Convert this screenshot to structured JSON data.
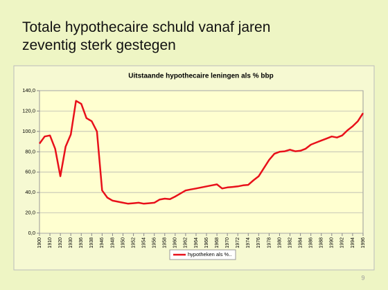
{
  "slide_title": "Totale hypothecaire schuld vanaf jaren zeventig sterk gestegen",
  "page_number": "9",
  "chart_data": {
    "type": "line",
    "title": "Uitstaande hypothecaire leningen als % bbp",
    "categories": [
      "1900",
      null,
      "1910",
      null,
      "1920",
      null,
      "1930",
      null,
      "1936",
      null,
      "1938",
      null,
      "1946",
      null,
      "1948",
      null,
      "1950",
      null,
      "1952",
      null,
      "1954",
      null,
      "1956",
      null,
      "1958",
      null,
      "1960",
      null,
      "1962",
      null,
      "1964",
      null,
      "1966",
      null,
      "1968",
      null,
      "1970",
      null,
      "1972",
      null,
      "1974",
      null,
      "1976",
      null,
      "1978",
      null,
      "1980",
      null,
      "1982",
      null,
      "1984",
      null,
      "1986",
      null,
      "1988",
      null,
      "1990",
      null,
      "1992",
      null,
      "1994",
      null,
      "1996"
    ],
    "series": [
      {
        "name": "hypotheken als %..",
        "color": "#e8101a",
        "values": [
          88,
          95,
          96,
          83,
          56,
          85,
          97,
          130,
          127,
          113,
          110,
          100,
          42,
          35,
          32,
          31,
          30,
          29,
          29.5,
          30,
          29,
          29.5,
          30,
          33,
          34,
          33.5,
          36,
          39,
          42,
          43,
          44,
          45,
          46,
          47,
          48,
          44,
          45,
          45.5,
          46,
          47,
          47.5,
          52,
          56,
          64,
          72,
          78,
          80,
          80.5,
          82,
          80.5,
          81,
          83,
          87,
          89,
          91,
          93,
          95,
          94,
          96,
          101,
          105,
          110,
          118
        ]
      }
    ],
    "ylim": [
      0,
      140
    ],
    "yticks": [
      {
        "value": 0,
        "label": "0,0"
      },
      {
        "value": 20,
        "label": "20,0"
      },
      {
        "value": 40,
        "label": "40,0"
      },
      {
        "value": 60,
        "label": "60,0"
      },
      {
        "value": 80,
        "label": "80,0"
      },
      {
        "value": 100,
        "label": "100,0"
      },
      {
        "value": 120,
        "label": "120,0"
      },
      {
        "value": 140,
        "label": "140,0"
      }
    ],
    "grid": true,
    "legend": "bottom"
  }
}
